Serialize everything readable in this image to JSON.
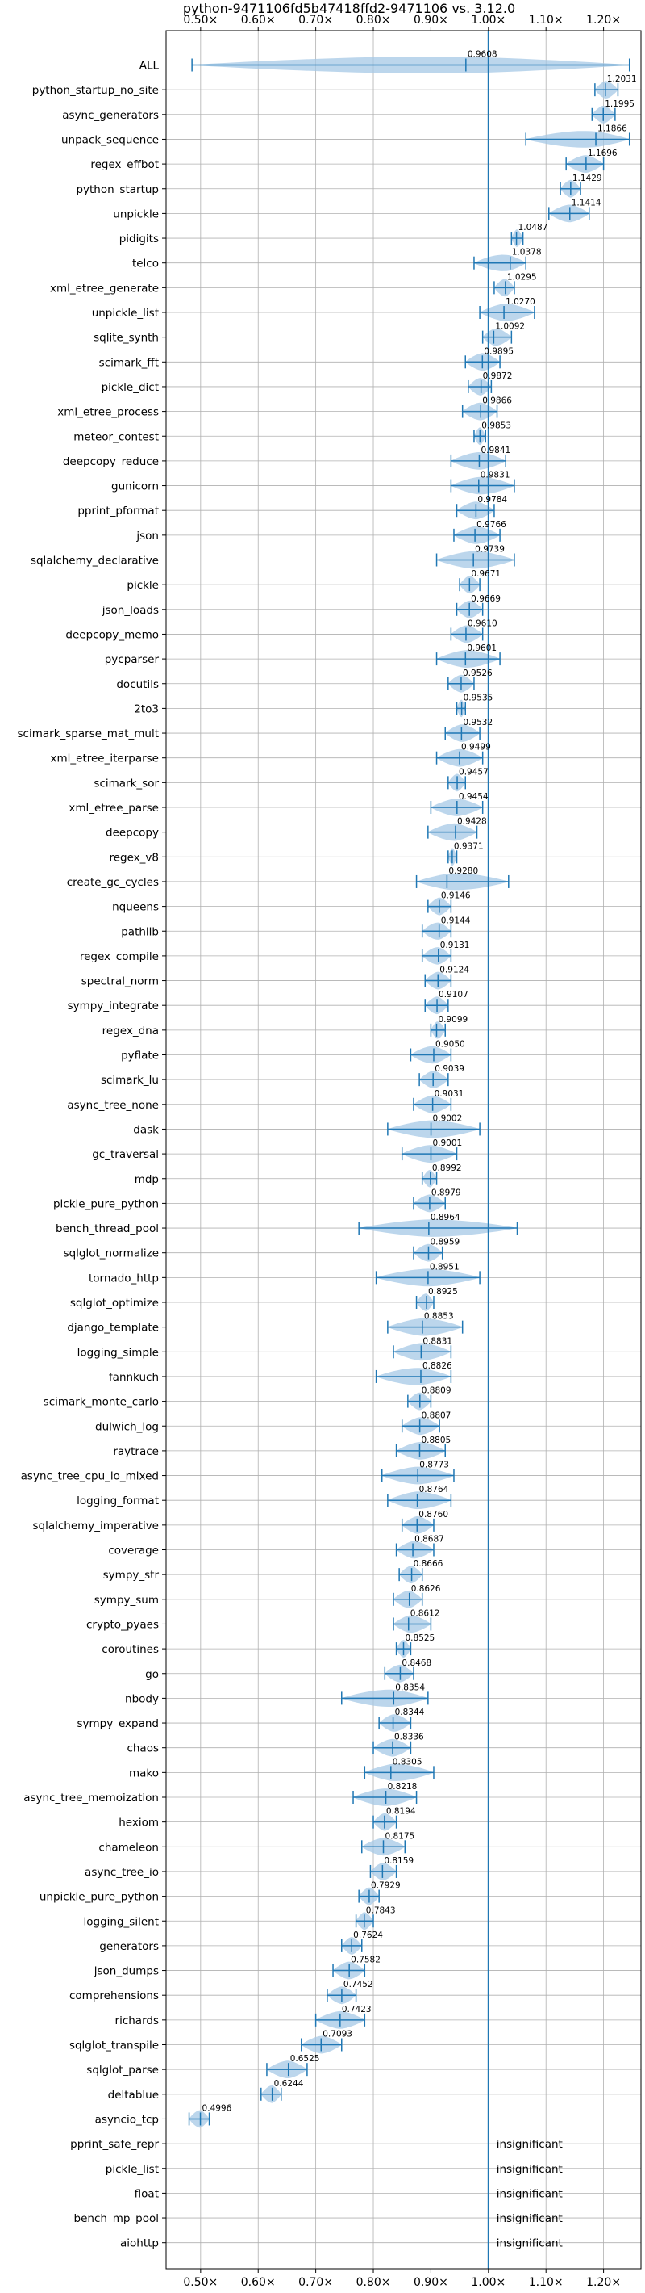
{
  "chart_data": {
    "type": "violin",
    "title": "python-9471106fd5b47418ffd2-9471106 vs. 3.12.0",
    "xlim": [
      0.44,
      1.265
    ],
    "xticks": [
      0.5,
      0.6,
      0.7,
      0.8,
      0.9,
      1.0,
      1.1,
      1.2
    ],
    "xtick_labels": [
      "0.50×",
      "0.60×",
      "0.70×",
      "0.80×",
      "0.90×",
      "1.00×",
      "1.10×",
      "1.20×"
    ],
    "reference_line": 1.0,
    "grid": true,
    "colors": {
      "violin": "#1f77b4",
      "violin_fill": "#a6c8e6",
      "axes": "#000000",
      "grid": "#b0b0b0"
    },
    "benchmarks": [
      {
        "name": "ALL",
        "value": 0.9608,
        "min": 0.485,
        "max": 1.245
      },
      {
        "name": "python_startup_no_site",
        "value": 1.2031,
        "min": 1.185,
        "max": 1.225
      },
      {
        "name": "async_generators",
        "value": 1.1995,
        "min": 1.18,
        "max": 1.22
      },
      {
        "name": "unpack_sequence",
        "value": 1.1866,
        "min": 1.065,
        "max": 1.245
      },
      {
        "name": "regex_effbot",
        "value": 1.1696,
        "min": 1.135,
        "max": 1.2
      },
      {
        "name": "python_startup",
        "value": 1.1429,
        "min": 1.125,
        "max": 1.16
      },
      {
        "name": "unpickle",
        "value": 1.1414,
        "min": 1.105,
        "max": 1.175
      },
      {
        "name": "pidigits",
        "value": 1.0487,
        "min": 1.04,
        "max": 1.06
      },
      {
        "name": "telco",
        "value": 1.0378,
        "min": 0.975,
        "max": 1.065
      },
      {
        "name": "xml_etree_generate",
        "value": 1.0295,
        "min": 1.01,
        "max": 1.045
      },
      {
        "name": "unpickle_list",
        "value": 1.027,
        "min": 0.985,
        "max": 1.08
      },
      {
        "name": "sqlite_synth",
        "value": 1.0092,
        "min": 0.99,
        "max": 1.04
      },
      {
        "name": "scimark_fft",
        "value": 0.9895,
        "min": 0.96,
        "max": 1.02
      },
      {
        "name": "pickle_dict",
        "value": 0.9872,
        "min": 0.965,
        "max": 1.005
      },
      {
        "name": "xml_etree_process",
        "value": 0.9866,
        "min": 0.955,
        "max": 1.015
      },
      {
        "name": "meteor_contest",
        "value": 0.9853,
        "min": 0.975,
        "max": 0.995
      },
      {
        "name": "deepcopy_reduce",
        "value": 0.9841,
        "min": 0.935,
        "max": 1.03
      },
      {
        "name": "gunicorn",
        "value": 0.9831,
        "min": 0.935,
        "max": 1.045
      },
      {
        "name": "pprint_pformat",
        "value": 0.9784,
        "min": 0.945,
        "max": 1.01
      },
      {
        "name": "json",
        "value": 0.9766,
        "min": 0.94,
        "max": 1.02
      },
      {
        "name": "sqlalchemy_declarative",
        "value": 0.9739,
        "min": 0.91,
        "max": 1.045
      },
      {
        "name": "pickle",
        "value": 0.9671,
        "min": 0.95,
        "max": 0.985
      },
      {
        "name": "json_loads",
        "value": 0.9669,
        "min": 0.945,
        "max": 0.99
      },
      {
        "name": "deepcopy_memo",
        "value": 0.961,
        "min": 0.935,
        "max": 0.99
      },
      {
        "name": "pycparser",
        "value": 0.9601,
        "min": 0.91,
        "max": 1.02
      },
      {
        "name": "docutils",
        "value": 0.9526,
        "min": 0.93,
        "max": 0.975
      },
      {
        "name": "2to3",
        "value": 0.9535,
        "min": 0.945,
        "max": 0.96
      },
      {
        "name": "scimark_sparse_mat_mult",
        "value": 0.9532,
        "min": 0.925,
        "max": 0.985
      },
      {
        "name": "xml_etree_iterparse",
        "value": 0.9499,
        "min": 0.91,
        "max": 0.99
      },
      {
        "name": "scimark_sor",
        "value": 0.9457,
        "min": 0.93,
        "max": 0.96
      },
      {
        "name": "xml_etree_parse",
        "value": 0.9454,
        "min": 0.9,
        "max": 0.99
      },
      {
        "name": "deepcopy",
        "value": 0.9428,
        "min": 0.895,
        "max": 0.98
      },
      {
        "name": "regex_v8",
        "value": 0.9371,
        "min": 0.93,
        "max": 0.945
      },
      {
        "name": "create_gc_cycles",
        "value": 0.928,
        "min": 0.875,
        "max": 1.035
      },
      {
        "name": "nqueens",
        "value": 0.9146,
        "min": 0.895,
        "max": 0.935
      },
      {
        "name": "pathlib",
        "value": 0.9144,
        "min": 0.885,
        "max": 0.935
      },
      {
        "name": "regex_compile",
        "value": 0.9131,
        "min": 0.885,
        "max": 0.935
      },
      {
        "name": "spectral_norm",
        "value": 0.9124,
        "min": 0.89,
        "max": 0.935
      },
      {
        "name": "sympy_integrate",
        "value": 0.9107,
        "min": 0.89,
        "max": 0.93
      },
      {
        "name": "regex_dna",
        "value": 0.9099,
        "min": 0.9,
        "max": 0.925
      },
      {
        "name": "pyflate",
        "value": 0.905,
        "min": 0.865,
        "max": 0.935
      },
      {
        "name": "scimark_lu",
        "value": 0.9039,
        "min": 0.88,
        "max": 0.93
      },
      {
        "name": "async_tree_none",
        "value": 0.9031,
        "min": 0.87,
        "max": 0.935
      },
      {
        "name": "dask",
        "value": 0.9002,
        "min": 0.825,
        "max": 0.985
      },
      {
        "name": "gc_traversal",
        "value": 0.9001,
        "min": 0.85,
        "max": 0.945
      },
      {
        "name": "mdp",
        "value": 0.8992,
        "min": 0.885,
        "max": 0.91
      },
      {
        "name": "pickle_pure_python",
        "value": 0.8979,
        "min": 0.87,
        "max": 0.925
      },
      {
        "name": "bench_thread_pool",
        "value": 0.8964,
        "min": 0.775,
        "max": 1.05
      },
      {
        "name": "sqlglot_normalize",
        "value": 0.8959,
        "min": 0.87,
        "max": 0.92
      },
      {
        "name": "tornado_http",
        "value": 0.8951,
        "min": 0.805,
        "max": 0.985
      },
      {
        "name": "sqlglot_optimize",
        "value": 0.8925,
        "min": 0.875,
        "max": 0.905
      },
      {
        "name": "django_template",
        "value": 0.8853,
        "min": 0.825,
        "max": 0.955
      },
      {
        "name": "logging_simple",
        "value": 0.8831,
        "min": 0.835,
        "max": 0.935
      },
      {
        "name": "fannkuch",
        "value": 0.8826,
        "min": 0.805,
        "max": 0.935
      },
      {
        "name": "scimark_monte_carlo",
        "value": 0.8809,
        "min": 0.86,
        "max": 0.9
      },
      {
        "name": "dulwich_log",
        "value": 0.8807,
        "min": 0.85,
        "max": 0.915
      },
      {
        "name": "raytrace",
        "value": 0.8805,
        "min": 0.84,
        "max": 0.925
      },
      {
        "name": "async_tree_cpu_io_mixed",
        "value": 0.8773,
        "min": 0.815,
        "max": 0.94
      },
      {
        "name": "logging_format",
        "value": 0.8764,
        "min": 0.825,
        "max": 0.935
      },
      {
        "name": "sqlalchemy_imperative",
        "value": 0.876,
        "min": 0.85,
        "max": 0.905
      },
      {
        "name": "coverage",
        "value": 0.8687,
        "min": 0.84,
        "max": 0.905
      },
      {
        "name": "sympy_str",
        "value": 0.8666,
        "min": 0.845,
        "max": 0.885
      },
      {
        "name": "sympy_sum",
        "value": 0.8626,
        "min": 0.835,
        "max": 0.885
      },
      {
        "name": "crypto_pyaes",
        "value": 0.8612,
        "min": 0.835,
        "max": 0.9
      },
      {
        "name": "coroutines",
        "value": 0.8525,
        "min": 0.84,
        "max": 0.865
      },
      {
        "name": "go",
        "value": 0.8468,
        "min": 0.82,
        "max": 0.87
      },
      {
        "name": "nbody",
        "value": 0.8354,
        "min": 0.745,
        "max": 0.895
      },
      {
        "name": "sympy_expand",
        "value": 0.8344,
        "min": 0.81,
        "max": 0.865
      },
      {
        "name": "chaos",
        "value": 0.8336,
        "min": 0.8,
        "max": 0.865
      },
      {
        "name": "mako",
        "value": 0.8305,
        "min": 0.785,
        "max": 0.905
      },
      {
        "name": "async_tree_memoization",
        "value": 0.8218,
        "min": 0.765,
        "max": 0.875
      },
      {
        "name": "hexiom",
        "value": 0.8194,
        "min": 0.8,
        "max": 0.84
      },
      {
        "name": "chameleon",
        "value": 0.8175,
        "min": 0.78,
        "max": 0.855
      },
      {
        "name": "async_tree_io",
        "value": 0.8159,
        "min": 0.795,
        "max": 0.84
      },
      {
        "name": "unpickle_pure_python",
        "value": 0.7929,
        "min": 0.775,
        "max": 0.81
      },
      {
        "name": "logging_silent",
        "value": 0.7843,
        "min": 0.77,
        "max": 0.8
      },
      {
        "name": "generators",
        "value": 0.7624,
        "min": 0.745,
        "max": 0.78
      },
      {
        "name": "json_dumps",
        "value": 0.7582,
        "min": 0.73,
        "max": 0.785
      },
      {
        "name": "comprehensions",
        "value": 0.7452,
        "min": 0.72,
        "max": 0.77
      },
      {
        "name": "richards",
        "value": 0.7423,
        "min": 0.7,
        "max": 0.785
      },
      {
        "name": "sqlglot_transpile",
        "value": 0.7093,
        "min": 0.675,
        "max": 0.745
      },
      {
        "name": "sqlglot_parse",
        "value": 0.6525,
        "min": 0.615,
        "max": 0.685
      },
      {
        "name": "deltablue",
        "value": 0.6244,
        "min": 0.605,
        "max": 0.64
      },
      {
        "name": "asyncio_tcp",
        "value": 0.4996,
        "min": 0.48,
        "max": 0.515
      },
      {
        "name": "pprint_safe_repr",
        "insignificant": true
      },
      {
        "name": "pickle_list",
        "insignificant": true
      },
      {
        "name": "float",
        "insignificant": true
      },
      {
        "name": "bench_mp_pool",
        "insignificant": true
      },
      {
        "name": "aiohttp",
        "insignificant": true
      }
    ],
    "insignificant_label": "insignificant"
  }
}
